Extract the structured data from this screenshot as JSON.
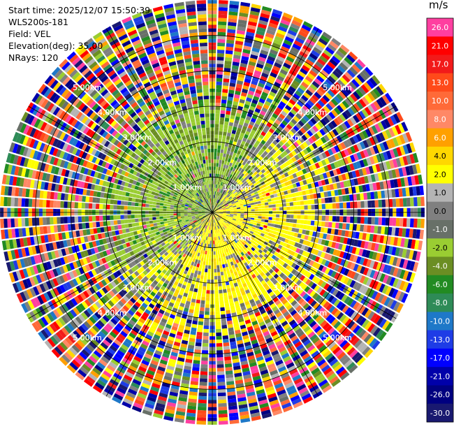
{
  "info": {
    "start_time": "Start time: 2025/12/07 15:50:39",
    "instrument": "WLS200s-181",
    "field": "Field: VEL",
    "elevation": "Elevation(deg): 35.00",
    "nrays": "NRays: 120"
  },
  "chart_data": {
    "type": "heatmap",
    "projection": "polar-ppi",
    "field": "VEL",
    "units": "m/s",
    "nrays": 120,
    "max_range_km": 6.0,
    "gates_per_ray": 60,
    "range_rings_km": [
      1,
      2,
      3,
      4,
      5
    ],
    "range_labels": [
      "1.00km",
      "2.00km",
      "3.00km",
      "4.00km",
      "5.00km"
    ],
    "spokes_deg": [
      0,
      30,
      60,
      90,
      120,
      150,
      180,
      210,
      240,
      270,
      300,
      330
    ],
    "colorbar": {
      "title": "m/s",
      "ticks": [
        "26.0",
        "21.0",
        "17.0",
        "13.0",
        "10.0",
        "8.0",
        "6.0",
        "4.0",
        "2.0",
        "1.0",
        "0.0",
        "-1.0",
        "-2.0",
        "-4.0",
        "-6.0",
        "-8.0",
        "-10.0",
        "-13.0",
        "-17.0",
        "-21.0",
        "-26.0",
        "-30.0"
      ],
      "colors": [
        "#ff3fa0",
        "#ff0000",
        "#f21a1a",
        "#ff4a1a",
        "#ff6a38",
        "#ff8866",
        "#ffa000",
        "#ffd700",
        "#ffff00",
        "#b4b4b4",
        "#808080",
        "#687068",
        "#9acd32",
        "#6b8e23",
        "#228b22",
        "#2e8b57",
        "#1e78c8",
        "#1e3ce6",
        "#0000ff",
        "#0000aa",
        "#000080",
        "#191970"
      ]
    },
    "field_description": {
      "near_range": "positive velocities (yellow) to the east and south, negative velocities (green) to the north and west",
      "far_range": "noisy, all colors"
    }
  }
}
